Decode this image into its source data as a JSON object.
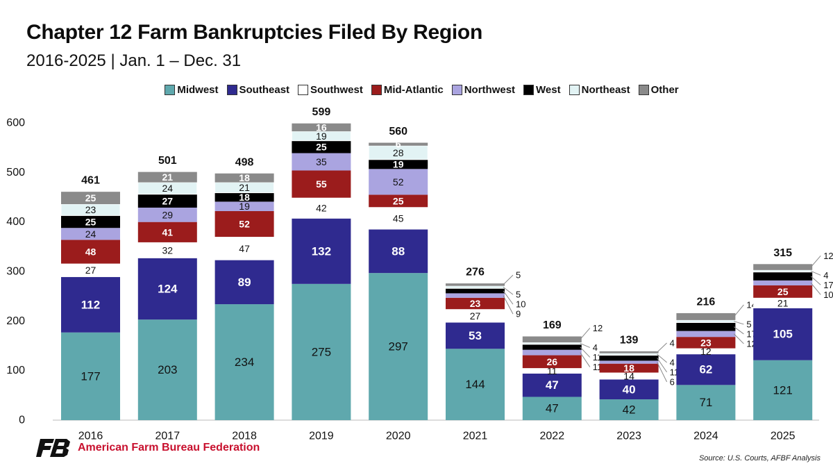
{
  "header": {
    "title": "Chapter 12 Farm Bankruptcies Filed By Region",
    "subtitle": "2016-2025 | Jan. 1 – Dec. 31"
  },
  "footer": {
    "organization": "American Farm Bureau Federation",
    "source": "Source: U.S. Courts, AFBF Analysis"
  },
  "chart_data": {
    "type": "bar",
    "stacked": true,
    "title": "Chapter 12 Farm Bankruptcies Filed By Region",
    "subtitle": "2016-2025 | Jan. 1 – Dec. 31",
    "categories": [
      "2016",
      "2017",
      "2018",
      "2019",
      "2020",
      "2021",
      "2022",
      "2023",
      "2024",
      "2025"
    ],
    "totals": [
      461,
      501,
      498,
      599,
      560,
      276,
      169,
      139,
      216,
      315
    ],
    "ylim": [
      0,
      600
    ],
    "yticks": [
      0,
      100,
      200,
      300,
      400,
      500,
      600
    ],
    "grid": false,
    "legend": "top-center",
    "series": [
      {
        "name": "Midwest",
        "color": "#5fa8ad",
        "values": [
          177,
          203,
          234,
          275,
          297,
          144,
          47,
          42,
          71,
          121
        ]
      },
      {
        "name": "Southeast",
        "color": "#2f2a8f",
        "values": [
          112,
          124,
          89,
          132,
          88,
          53,
          47,
          40,
          62,
          105
        ]
      },
      {
        "name": "Southwest",
        "color": "#ffffff",
        "values": [
          27,
          32,
          47,
          42,
          45,
          27,
          11,
          14,
          12,
          21
        ]
      },
      {
        "name": "Mid-Atlantic",
        "color": "#9b1c1c",
        "values": [
          48,
          41,
          52,
          55,
          25,
          23,
          26,
          18,
          23,
          25
        ]
      },
      {
        "name": "Northwest",
        "color": "#aaa4e0",
        "values": [
          24,
          29,
          19,
          35,
          52,
          9,
          11,
          6,
          12,
          10
        ]
      },
      {
        "name": "West",
        "color": "#000000",
        "values": [
          25,
          27,
          18,
          25,
          19,
          10,
          11,
          11,
          17,
          17
        ]
      },
      {
        "name": "Northeast",
        "color": "#e2f3f4",
        "values": [
          23,
          24,
          21,
          19,
          28,
          5,
          4,
          4,
          5,
          4
        ]
      },
      {
        "name": "Other",
        "color": "#8a8a8a",
        "values": [
          25,
          21,
          18,
          16,
          6,
          5,
          12,
          4,
          14,
          12
        ]
      }
    ]
  }
}
